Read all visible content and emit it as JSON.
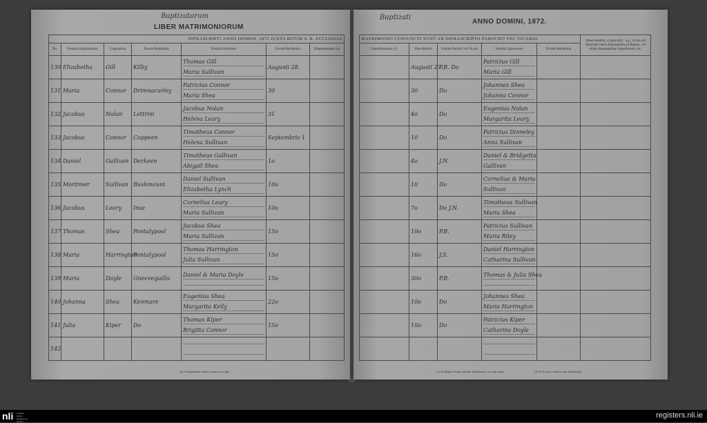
{
  "left_page": {
    "handwritten_heading": "Baptizatorum",
    "book_title": "LIBER MATRIMONIORUM",
    "banner": "INFRASCRIPTI ANNO DOMINI, 1872 JUXTA RITUM S. R. ECCLESIAE",
    "columns": [
      "No.",
      "Nomina Baptizatorum",
      "Cognomina",
      "Eorum Residentia",
      "Nomina Parentum",
      "Eorum Residentia",
      "Dispensationes (a)"
    ],
    "rows": [
      {
        "no": "130",
        "name": "Elizabetha",
        "surname": "Gill",
        "residence": "Kilby",
        "parents": [
          "Thomas Gill",
          "Maria Sullivan"
        ],
        "date": "Augusti 28"
      },
      {
        "no": "131",
        "name": "Maria",
        "surname": "Connor",
        "residence": "Drimnacurley",
        "parents": [
          "Patricius Connor",
          "Maria Shea"
        ],
        "date": "30"
      },
      {
        "no": "132",
        "name": "Jacobus",
        "surname": "Nolan",
        "residence": "Lettrim",
        "parents": [
          "Jacobus Nolan",
          "Helena Leary"
        ],
        "date": "31"
      },
      {
        "no": "133",
        "name": "Jacobus",
        "surname": "Connor",
        "residence": "Coppeen",
        "parents": [
          "Timotheus Connor",
          "Helena Sullivan"
        ],
        "date": "Septembris 1"
      },
      {
        "no": "134",
        "name": "Daniel",
        "surname": "Gallivan",
        "residence": "Derkeen",
        "parents": [
          "Timotheus Gallivan",
          "Abigail Shea"
        ],
        "date": "1o"
      },
      {
        "no": "135",
        "name": "Mortimer",
        "surname": "Sullivan",
        "residence": "Bushmount",
        "parents": [
          "Daniel Sullivan",
          "Elizabetha Lynch"
        ],
        "date": "10o"
      },
      {
        "no": "136",
        "name": "Jacobus",
        "surname": "Leary",
        "residence": "Inse",
        "parents": [
          "Cornelius Leary",
          "Maria Sullivan"
        ],
        "date": "10o"
      },
      {
        "no": "137",
        "name": "Thomas",
        "surname": "Shea",
        "residence": "Pontalypool",
        "parents": [
          "Jacobus Shea",
          "Maria Sullivan"
        ],
        "date": "15o"
      },
      {
        "no": "138",
        "name": "Maria",
        "surname": "Harrington",
        "residence": "Pontalypool",
        "parents": [
          "Thomas Harrington",
          "Julia Sullivan"
        ],
        "date": "15o"
      },
      {
        "no": "139",
        "name": "Maria",
        "surname": "Doyle",
        "residence": "Gneeveguilla",
        "parents": [
          "Daniel & Maria Doyle",
          ""
        ],
        "date": "15o"
      },
      {
        "no": "140",
        "name": "Johanna",
        "surname": "Shea",
        "residence": "Kenmare",
        "parents": [
          "Eugenius Shea",
          "Margarita Kelly"
        ],
        "date": "22o"
      },
      {
        "no": "141",
        "name": "Julia",
        "surname": "Kiper",
        "residence": "Do",
        "parents": [
          "Thomas Kiper",
          "Brigitta Connor"
        ],
        "date": "15o"
      },
      {
        "no": "142",
        "name": "",
        "surname": "",
        "residence": "",
        "parents": [
          "",
          ""
        ],
        "date": ""
      }
    ],
    "footnote": "(a) Si dispensatio fuerit, notetur et a quo."
  },
  "right_page": {
    "handwritten_heading": "Baptizati",
    "book_title": "ANNO DOMINI, 1872.",
    "banner": "MATRIMONIO CONJUNCTI SUNT AB INFRASCRIPTO PAROCHO VEL VICARIO.",
    "columns": [
      "Impedimentum (1)",
      "Dies Mensis",
      "Nomen Parochi vel Vicarii",
      "Nomina Sponsorum",
      "Eorum Residentia"
    ],
    "observation_header": "Observandum, si quis dicit : a.g., si solo ab Episcopo fuerit dispensatum ab Bannis, vel etiam dispensatione impedimenti, etc.",
    "rows": [
      {
        "day": "Augusti 27",
        "priest": "P.B. Do",
        "sponsors": [
          "Patricius Gill",
          "Maria Gill"
        ]
      },
      {
        "day": "30",
        "priest": "Do",
        "sponsors": [
          "Johannes Shea",
          "Johanna Connor"
        ]
      },
      {
        "day": "4o",
        "priest": "Do",
        "sponsors": [
          "Eugenius Nolan",
          "Margarita Leary"
        ]
      },
      {
        "day": "10",
        "priest": "Do",
        "sponsors": [
          "Patricius Dinneley",
          "Anna Sullivan"
        ]
      },
      {
        "day": "4o",
        "priest": "J.N.",
        "sponsors": [
          "Daniel & Bridgetta",
          "Gallivan"
        ]
      },
      {
        "day": "10",
        "priest": "Do",
        "sponsors": [
          "Cornelius & Maria",
          "Sullivan"
        ]
      },
      {
        "day": "7o",
        "priest": "Do J.N.",
        "sponsors": [
          "Timotheus Sullivan",
          "Maria Shea"
        ]
      },
      {
        "day": "10o",
        "priest": "P.B.",
        "sponsors": [
          "Patricius Sullivan",
          "Maria Riley"
        ]
      },
      {
        "day": "16o",
        "priest": "J.S.",
        "sponsors": [
          "Daniel Harrington",
          "Catharina Sullivan"
        ]
      },
      {
        "day": "30o",
        "priest": "P.B.",
        "sponsors": [
          "Thomas & Julia Shea",
          ""
        ]
      },
      {
        "day": "10o",
        "priest": "Do",
        "sponsors": [
          "Johannes Shea",
          "Maria Harrington"
        ]
      },
      {
        "day": "10o",
        "priest": "Do",
        "sponsors": [
          "Patricius Kiper",
          "Catharina Doyle"
        ]
      },
      {
        "day": "",
        "priest": "",
        "sponsors": [
          "",
          ""
        ]
      }
    ],
    "footnotes": [
      "(1) Si aliquod fuerit, notetur dispensatio, et a quo data.",
      "(2) Si de loco, notetur quo dispensatio."
    ]
  },
  "footer": {
    "logo": "nli",
    "logo_caption": "Catholic Parish Registers at the NLI",
    "site": "registers.nli.ie"
  }
}
